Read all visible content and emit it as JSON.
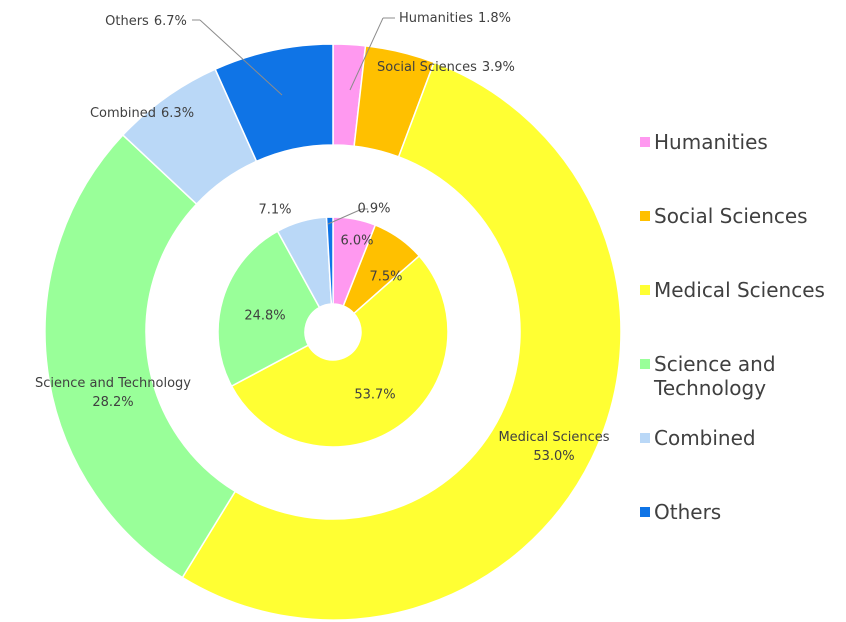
{
  "chart_data": {
    "type": "donut",
    "categories": [
      "Humanities",
      "Social Sciences",
      "Medical Sciences",
      "Science and Technology",
      "Combined",
      "Others"
    ],
    "colors": [
      "#ff99f0",
      "#ffc000",
      "#ffff33",
      "#99ff99",
      "#bad8f7",
      "#0f74e6"
    ],
    "series": [
      {
        "values": [
          1.8,
          3.9,
          53.0,
          28.2,
          6.3,
          6.7
        ],
        "value_labels": [
          "1.8%",
          "3.9%",
          "53.0%",
          "28.2%",
          "6.3%",
          "6.7%"
        ]
      },
      {
        "values": [
          6.0,
          7.5,
          53.7,
          24.8,
          7.1,
          0.9
        ],
        "value_labels": [
          "6.0%",
          "7.5%",
          "53.7%",
          "24.8%",
          "7.1%",
          "0.9%"
        ]
      }
    ],
    "legend": "right"
  }
}
